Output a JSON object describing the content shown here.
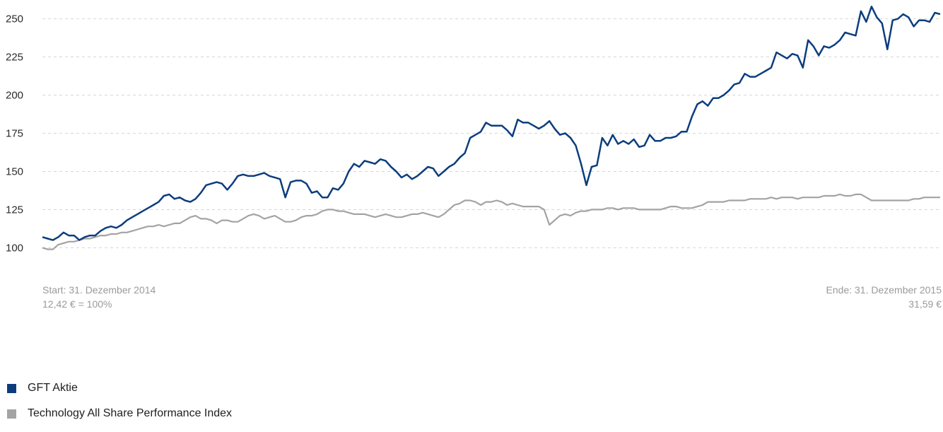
{
  "chart_data": {
    "type": "line",
    "title": "",
    "xlabel": "",
    "ylabel": "",
    "ylim": [
      90,
      260
    ],
    "yticks": [
      100,
      125,
      150,
      175,
      200,
      225,
      250
    ],
    "x_range": [
      "2014-12-31",
      "2015-12-31"
    ],
    "grid": true,
    "legend_position": "bottom-left",
    "annotations": {
      "start_label": "Start: 31. Dezember 2014",
      "start_value": "12,42 € = 100%",
      "end_label": "Ende: 31. Dezember 2015",
      "end_value": "31,59 €"
    },
    "series": [
      {
        "name": "GFT Aktie",
        "color": "#0b3d7e",
        "values": [
          107,
          106,
          105,
          107,
          110,
          108,
          108,
          105,
          107,
          108,
          108,
          111,
          113,
          114,
          113,
          115,
          118,
          120,
          122,
          124,
          126,
          128,
          130,
          134,
          135,
          132,
          133,
          131,
          130,
          132,
          136,
          141,
          142,
          143,
          142,
          138,
          142,
          147,
          148,
          147,
          147,
          148,
          149,
          147,
          146,
          145,
          133,
          143,
          144,
          144,
          142,
          136,
          137,
          133,
          133,
          139,
          138,
          142,
          150,
          155,
          153,
          157,
          156,
          155,
          158,
          157,
          153,
          150,
          146,
          148,
          145,
          147,
          150,
          153,
          152,
          147,
          150,
          153,
          155,
          159,
          162,
          172,
          174,
          176,
          182,
          180,
          180,
          180,
          177,
          173,
          184,
          182,
          182,
          180,
          178,
          180,
          183,
          178,
          174,
          175,
          172,
          167,
          155,
          141,
          153,
          154,
          172,
          167,
          174,
          168,
          170,
          168,
          171,
          166,
          167,
          174,
          170,
          170,
          172,
          172,
          173,
          176,
          176,
          186,
          194,
          196,
          193,
          198,
          198,
          200,
          203,
          207,
          208,
          214,
          212,
          212,
          214,
          216,
          218,
          228,
          226,
          224,
          227,
          226,
          218,
          236,
          232,
          226,
          232,
          231,
          233,
          236,
          241,
          240,
          239,
          255,
          248,
          258,
          251,
          247,
          230,
          249,
          250,
          253,
          251,
          245,
          249,
          249,
          248,
          254,
          253
        ]
      },
      {
        "name": "Technology All Share Performance Index",
        "color": "#a3a3a3",
        "values": [
          100,
          99,
          99,
          102,
          103,
          104,
          104,
          105,
          106,
          106,
          107,
          108,
          108,
          109,
          109,
          110,
          110,
          111,
          112,
          113,
          114,
          114,
          115,
          114,
          115,
          116,
          116,
          118,
          120,
          121,
          119,
          119,
          118,
          116,
          118,
          118,
          117,
          117,
          119,
          121,
          122,
          121,
          119,
          120,
          121,
          119,
          117,
          117,
          118,
          120,
          121,
          121,
          122,
          124,
          125,
          125,
          124,
          124,
          123,
          122,
          122,
          122,
          121,
          120,
          121,
          122,
          121,
          120,
          120,
          121,
          122,
          122,
          123,
          122,
          121,
          120,
          122,
          125,
          128,
          129,
          131,
          131,
          130,
          128,
          130,
          130,
          131,
          130,
          128,
          129,
          128,
          127,
          127,
          127,
          127,
          125,
          115,
          118,
          121,
          122,
          121,
          123,
          124,
          124,
          125,
          125,
          125,
          126,
          126,
          125,
          126,
          126,
          126,
          125,
          125,
          125,
          125,
          125,
          126,
          127,
          127,
          126,
          126,
          126,
          127,
          128,
          130,
          130,
          130,
          130,
          131,
          131,
          131,
          131,
          132,
          132,
          132,
          132,
          133,
          132,
          133,
          133,
          133,
          132,
          133,
          133,
          133,
          133,
          134,
          134,
          134,
          135,
          134,
          134,
          135,
          135,
          133,
          131,
          131,
          131,
          131,
          131,
          131,
          131,
          131,
          132,
          132,
          133,
          133,
          133,
          133
        ]
      }
    ]
  }
}
